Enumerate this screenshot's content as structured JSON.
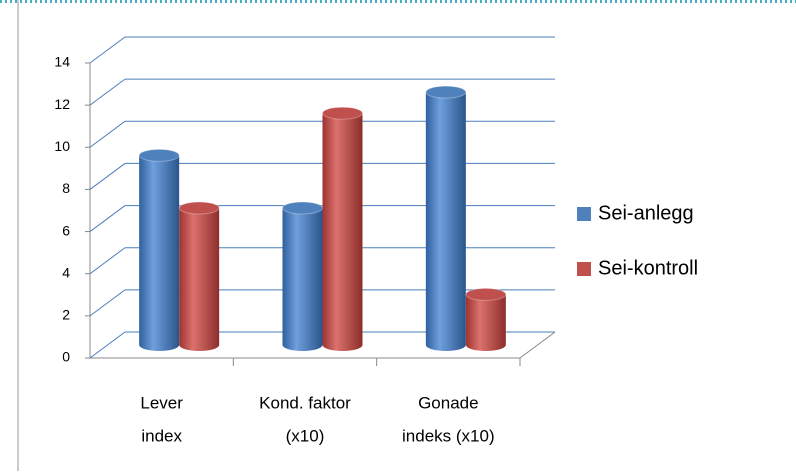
{
  "chart_data": {
    "type": "bar3d",
    "categories": [
      [
        "Lever",
        "index"
      ],
      [
        "Kond. faktor",
        "(x10)"
      ],
      [
        "Gonade",
        "indeks (x10)"
      ]
    ],
    "series": [
      {
        "name": "Sei-anlegg",
        "color": "#4f81bd",
        "values": [
          9.0,
          6.5,
          12.0
        ]
      },
      {
        "name": "Sei-kontroll",
        "color": "#c0504d",
        "values": [
          6.5,
          11.0,
          2.4
        ]
      }
    ],
    "ylim": [
      0,
      14
    ],
    "yticks": [
      0,
      2,
      4,
      6,
      8,
      10,
      12,
      14
    ],
    "grid": true,
    "legend": "right"
  }
}
